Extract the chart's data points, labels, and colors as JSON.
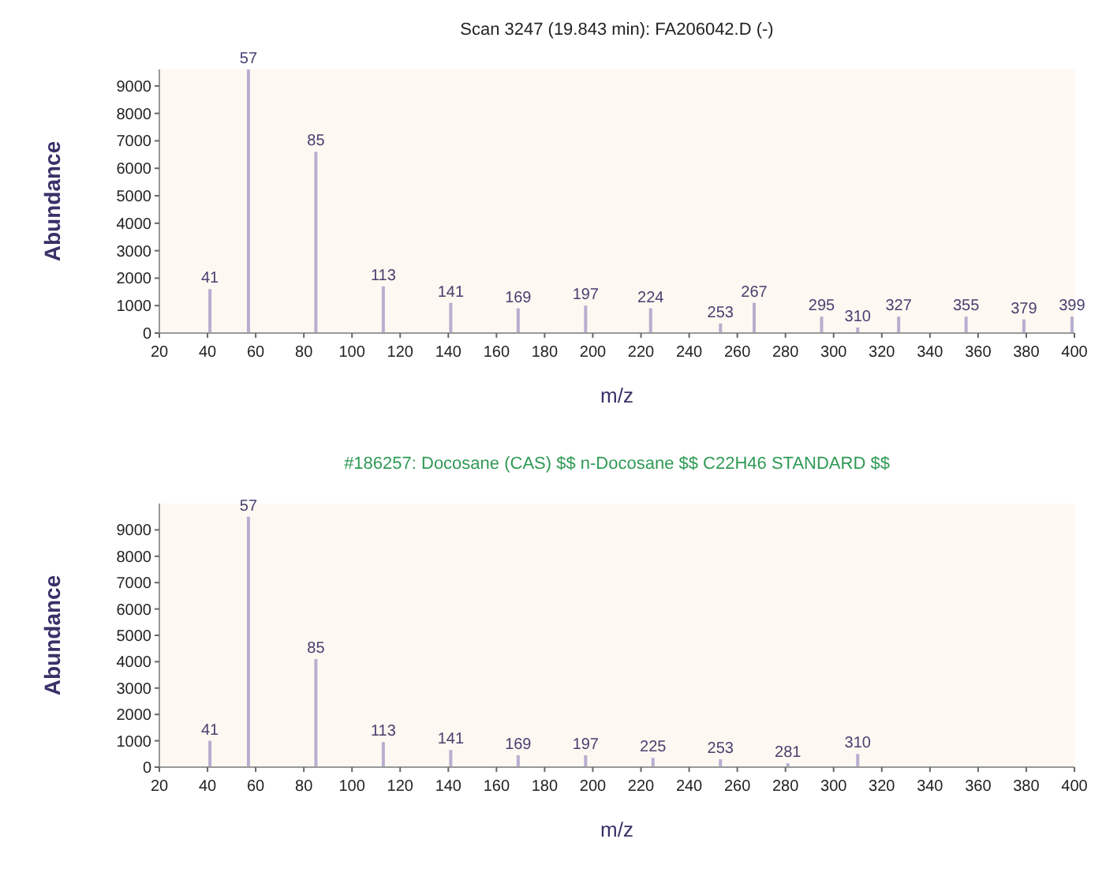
{
  "chart_data": [
    {
      "type": "bar",
      "title": "Scan 3247 (19.843 min): FA206042.D (-)",
      "xlabel": "m/z",
      "ylabel": "Abundance",
      "color": "#b8aed0",
      "x": [
        41,
        57,
        85,
        113,
        141,
        169,
        197,
        224,
        253,
        267,
        295,
        310,
        327,
        355,
        379,
        399
      ],
      "values": [
        1600,
        9600,
        6600,
        1700,
        1100,
        900,
        1000,
        900,
        350,
        1100,
        600,
        200,
        600,
        600,
        500,
        600
      ],
      "annotations": [
        {
          "text": "41",
          "x": 41,
          "y": 1600
        },
        {
          "text": "57",
          "x": 57,
          "y": 9600
        },
        {
          "text": "85",
          "x": 85,
          "y": 6600
        },
        {
          "text": "113",
          "x": 113,
          "y": 1700
        },
        {
          "text": "141",
          "x": 141,
          "y": 1100
        },
        {
          "text": "169",
          "x": 169,
          "y": 900
        },
        {
          "text": "197",
          "x": 197,
          "y": 1000
        },
        {
          "text": "224",
          "x": 224,
          "y": 900
        },
        {
          "text": "253",
          "x": 253,
          "y": 350
        },
        {
          "text": "267",
          "x": 267,
          "y": 1100
        },
        {
          "text": "295",
          "x": 295,
          "y": 600
        },
        {
          "text": "310",
          "x": 310,
          "y": 200
        },
        {
          "text": "327",
          "x": 327,
          "y": 600
        },
        {
          "text": "355",
          "x": 355,
          "y": 600
        },
        {
          "text": "379",
          "x": 379,
          "y": 500
        },
        {
          "text": "399",
          "x": 399,
          "y": 600
        }
      ],
      "xlim": [
        20,
        400
      ],
      "xticks": [
        20,
        40,
        60,
        80,
        100,
        120,
        140,
        160,
        180,
        200,
        220,
        240,
        260,
        280,
        300,
        320,
        340,
        360,
        380,
        400
      ],
      "ylim": [
        0,
        9600
      ],
      "yticks": [
        0,
        1000,
        2000,
        3000,
        4000,
        5000,
        6000,
        7000,
        8000,
        9000
      ]
    },
    {
      "type": "bar",
      "title": "#186257: Docosane (CAS) $$ n-Docosane $$ C22H46 STANDARD $$",
      "xlabel": "m/z",
      "ylabel": "Abundance",
      "color": "#b8aed0",
      "x": [
        41,
        57,
        85,
        113,
        141,
        169,
        197,
        225,
        253,
        281,
        310
      ],
      "values": [
        1000,
        9500,
        4100,
        950,
        650,
        450,
        450,
        350,
        300,
        150,
        500
      ],
      "annotations": [
        {
          "text": "41",
          "x": 41,
          "y": 1000
        },
        {
          "text": "57",
          "x": 57,
          "y": 9500
        },
        {
          "text": "85",
          "x": 85,
          "y": 4100
        },
        {
          "text": "113",
          "x": 113,
          "y": 950
        },
        {
          "text": "141",
          "x": 141,
          "y": 650
        },
        {
          "text": "169",
          "x": 169,
          "y": 450
        },
        {
          "text": "197",
          "x": 197,
          "y": 450
        },
        {
          "text": "225",
          "x": 225,
          "y": 350
        },
        {
          "text": "253",
          "x": 253,
          "y": 300
        },
        {
          "text": "281",
          "x": 281,
          "y": 150
        },
        {
          "text": "310",
          "x": 310,
          "y": 500
        }
      ],
      "xlim": [
        20,
        400
      ],
      "xticks": [
        20,
        40,
        60,
        80,
        100,
        120,
        140,
        160,
        180,
        200,
        220,
        240,
        260,
        280,
        300,
        320,
        340,
        360,
        380,
        400
      ],
      "ylim": [
        0,
        10000
      ],
      "yticks": [
        0,
        1000,
        2000,
        3000,
        4000,
        5000,
        6000,
        7000,
        8000,
        9000
      ]
    }
  ]
}
